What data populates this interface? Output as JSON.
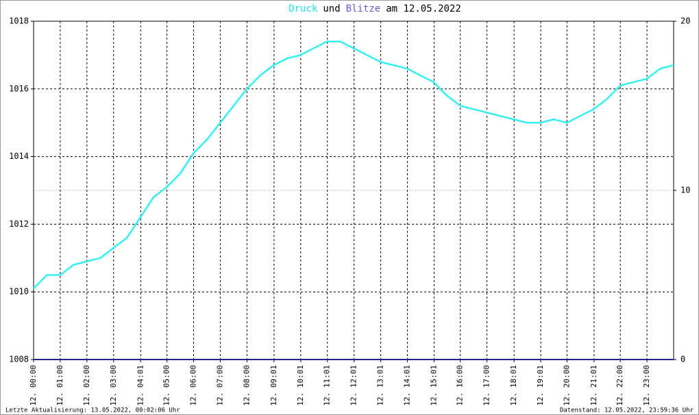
{
  "chart_data": {
    "type": "line",
    "title_parts": [
      {
        "text": "Druck",
        "color": "#22e0e0"
      },
      {
        "text": "und",
        "color": "#000000"
      },
      {
        "text": "Blitze",
        "color": "#6a5acd"
      },
      {
        "text": "am 12.05.2022",
        "color": "#000000"
      }
    ],
    "x": [
      0,
      0.5,
      1,
      1.5,
      2,
      2.5,
      3,
      3.5,
      4,
      4.5,
      5,
      5.5,
      6,
      6.5,
      7,
      7.5,
      8,
      8.5,
      9,
      9.5,
      10,
      10.5,
      11,
      11.5,
      12,
      12.5,
      13,
      13.5,
      14,
      14.5,
      15,
      15.5,
      16,
      16.5,
      17,
      17.5,
      18,
      18.5,
      19,
      19.5,
      20,
      20.5,
      21,
      21.5,
      22,
      22.5,
      23,
      23.5,
      24
    ],
    "series": [
      {
        "name": "Druck",
        "color": "#33f0f0",
        "axis": "y",
        "values": [
          1010.1,
          1010.5,
          1010.5,
          1010.8,
          1010.9,
          1011.0,
          1011.3,
          1011.6,
          1012.2,
          1012.8,
          1013.1,
          1013.5,
          1014.1,
          1014.5,
          1015.0,
          1015.5,
          1016.0,
          1016.4,
          1016.7,
          1016.9,
          1017.0,
          1017.2,
          1017.4,
          1017.4,
          1017.2,
          1017.0,
          1016.8,
          1016.7,
          1016.6,
          1016.4,
          1016.2,
          1015.8,
          1015.5,
          1015.4,
          1015.3,
          1015.2,
          1015.1,
          1015.0,
          1015.0,
          1015.1,
          1015.0,
          1015.2,
          1015.4,
          1015.7,
          1016.1,
          1016.2,
          1016.3,
          1016.6,
          1016.7
        ]
      },
      {
        "name": "Blitze",
        "color": "#222288",
        "axis": "y2",
        "x": [
          0,
          24
        ],
        "values": [
          0,
          0
        ]
      }
    ],
    "xlim": [
      0,
      24
    ],
    "xticks": [
      {
        "value": 0,
        "label": "12. 00:00"
      },
      {
        "value": 1,
        "label": "12. 01:00"
      },
      {
        "value": 2,
        "label": "12. 02:00"
      },
      {
        "value": 3,
        "label": "12. 03:00"
      },
      {
        "value": 4.0167,
        "label": "12. 04:01"
      },
      {
        "value": 5,
        "label": "12. 05:00"
      },
      {
        "value": 6,
        "label": "12. 06:00"
      },
      {
        "value": 7,
        "label": "12. 07:00"
      },
      {
        "value": 8,
        "label": "12. 08:00"
      },
      {
        "value": 9.0167,
        "label": "12. 09:01"
      },
      {
        "value": 10.0167,
        "label": "12. 10:01"
      },
      {
        "value": 11.0167,
        "label": "12. 11:01"
      },
      {
        "value": 12.0167,
        "label": "12. 12:01"
      },
      {
        "value": 13.0167,
        "label": "12. 13:01"
      },
      {
        "value": 14.0167,
        "label": "12. 14:01"
      },
      {
        "value": 15.0167,
        "label": "12. 15:01"
      },
      {
        "value": 16,
        "label": "12. 16:00"
      },
      {
        "value": 17,
        "label": "12. 17:00"
      },
      {
        "value": 18.0167,
        "label": "12. 18:01"
      },
      {
        "value": 19.0167,
        "label": "12. 19:01"
      },
      {
        "value": 20,
        "label": "12. 20:00"
      },
      {
        "value": 21.0167,
        "label": "12. 21:01"
      },
      {
        "value": 22,
        "label": "12. 22:00"
      },
      {
        "value": 23,
        "label": "12. 23:00"
      }
    ],
    "ylim": [
      1008,
      1018
    ],
    "yticks": [
      1008,
      1010,
      1012,
      1014,
      1016,
      1018
    ],
    "y2lim": [
      0,
      20
    ],
    "y2ticks": [
      0,
      10,
      20
    ],
    "grid": true,
    "footer_left": "Letzte Aktualisierung: 13.05.2022, 00:02:06 Uhr",
    "footer_right": "Datenstand: 12.05.2022, 23:59:36 Uhr"
  }
}
